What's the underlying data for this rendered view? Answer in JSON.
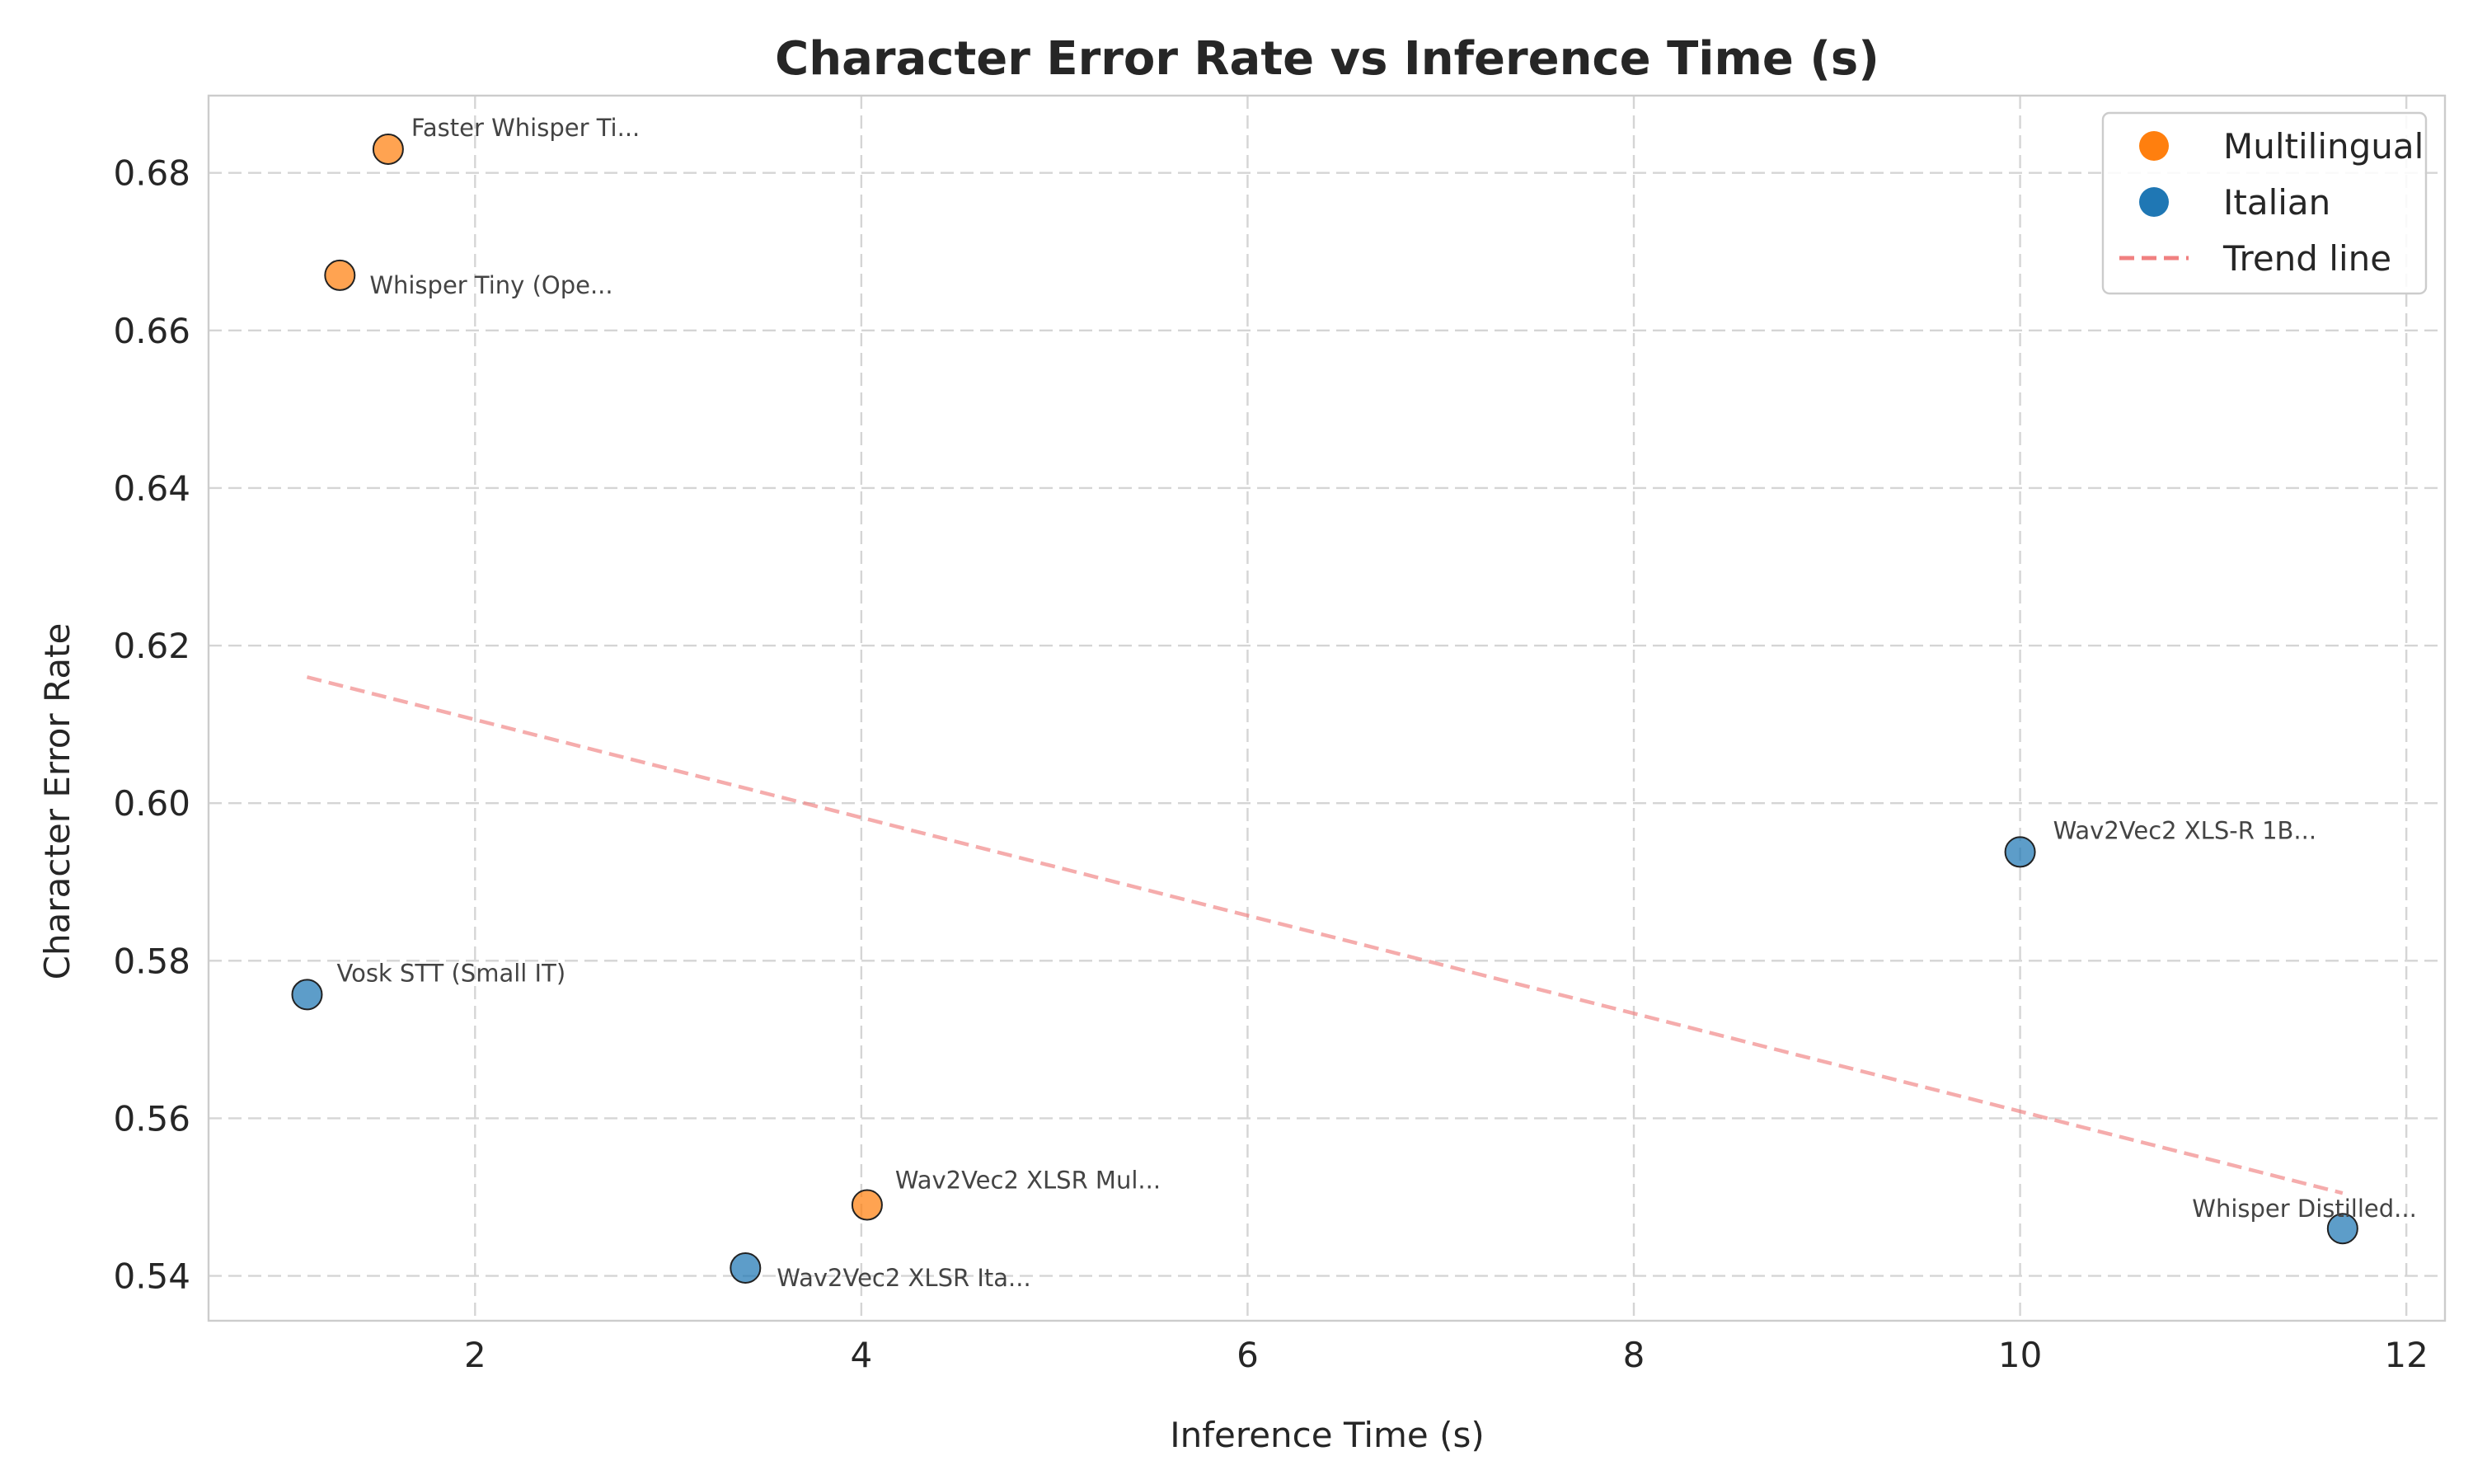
{
  "chart_data": {
    "type": "scatter",
    "title": "Character Error Rate vs Inference Time (s)",
    "xlabel": "Inference Time (s)",
    "ylabel": "Character Error Rate",
    "xlim": [
      0.62,
      12.2
    ],
    "ylim": [
      0.5343,
      0.6898
    ],
    "xticks": [
      2,
      4,
      6,
      8,
      10,
      12
    ],
    "yticks": [
      0.54,
      0.56,
      0.58,
      0.6,
      0.62,
      0.64,
      0.66,
      0.68
    ],
    "ytick_labels": [
      "0.54",
      "0.56",
      "0.58",
      "0.60",
      "0.62",
      "0.64",
      "0.66",
      "0.68"
    ],
    "grid": true,
    "legend_position": "top-right",
    "colors": {
      "Multilingual": "#ff7f0e",
      "Italian": "#1f77b4",
      "Trend line": "#f08080"
    },
    "series": [
      {
        "name": "Multilingual",
        "points": [
          {
            "label": "Faster Whisper Ti...",
            "x": 1.55,
            "y": 0.683
          },
          {
            "label": "Whisper Tiny (Ope...",
            "x": 1.3,
            "y": 0.667
          },
          {
            "label": "Wav2Vec2 XLSR Mul...",
            "x": 4.03,
            "y": 0.549
          }
        ]
      },
      {
        "name": "Italian",
        "points": [
          {
            "label": "Vosk STT (Small IT)",
            "x": 1.13,
            "y": 0.5757
          },
          {
            "label": "Wav2Vec2 XLSR Ita...",
            "x": 3.4,
            "y": 0.541
          },
          {
            "label": "Wav2Vec2 XLS-R 1B...",
            "x": 10.0,
            "y": 0.5938
          },
          {
            "label": "Whisper Distilled...",
            "x": 11.67,
            "y": 0.546
          }
        ]
      }
    ],
    "trend_line": {
      "name": "Trend line",
      "x": [
        1.13,
        11.67
      ],
      "y": [
        0.616,
        0.5505
      ]
    },
    "legend": [
      "Multilingual",
      "Italian",
      "Trend line"
    ]
  }
}
